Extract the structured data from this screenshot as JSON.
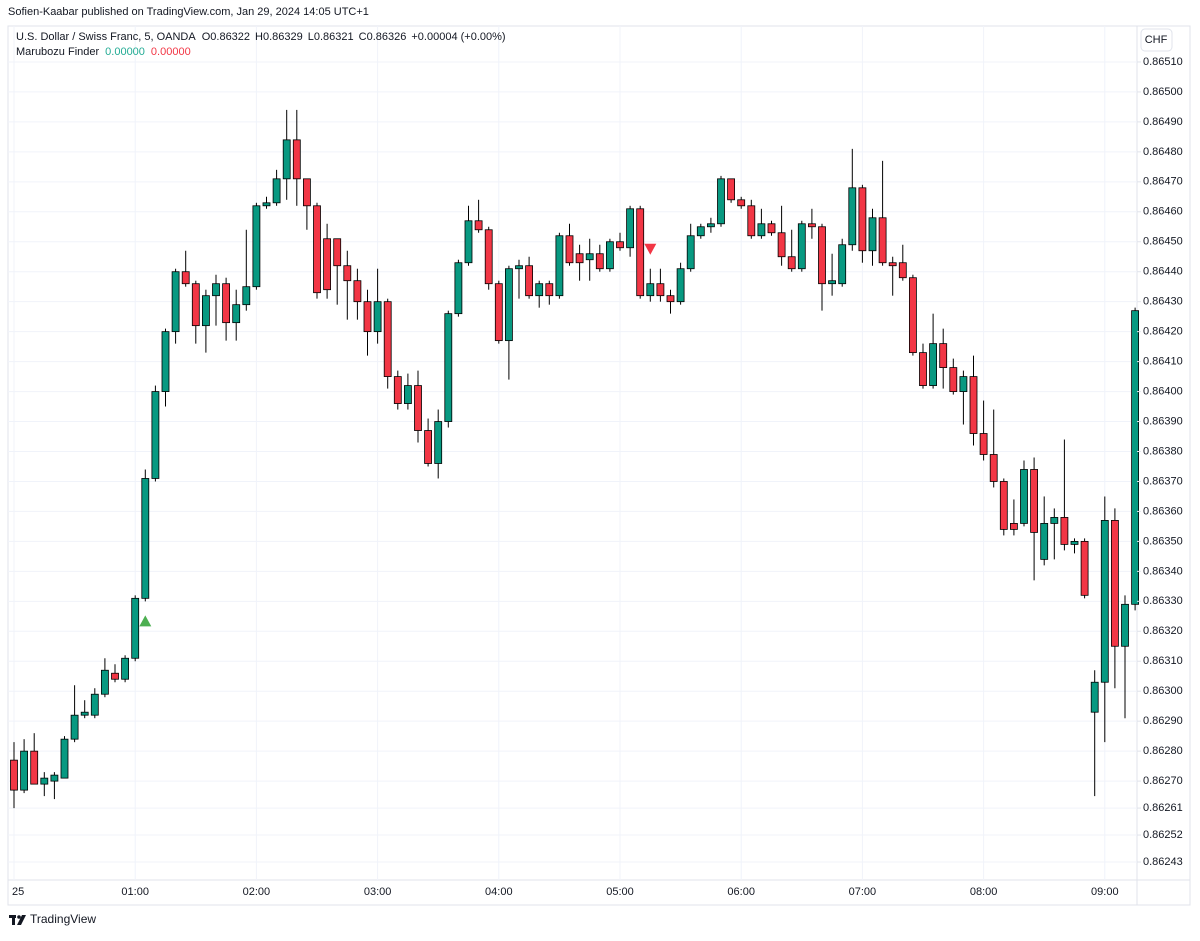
{
  "chart_data": {
    "type": "candlestick",
    "published": "Sofien-Kaabar published on TradingView.com, Jan 29, 2024 14:05 UTC+1",
    "title": "U.S. Dollar / Swiss Franc, 5, OANDA",
    "legend_open": "O0.86322",
    "legend_high": "H0.86329",
    "legend_low": "L0.86321",
    "legend_close": "C0.86326",
    "legend_change": "+0.00004 (+0.00%)",
    "indicator": "Marubozu Finder",
    "indicator_values": [
      {
        "text": "0.00000",
        "color": "#22ab94"
      },
      {
        "text": "0.00000",
        "color": "#f23645"
      }
    ],
    "currency": "CHF",
    "footer": "TradingView",
    "up_color": "#089981",
    "down_color": "#f23645",
    "grid": true,
    "ylim": [
      0.86237,
      0.86522
    ],
    "yticks": [
      {
        "value": 0.8651,
        "label": "0.86510"
      },
      {
        "value": 0.865,
        "label": "0.86500"
      },
      {
        "value": 0.8649,
        "label": "0.86490"
      },
      {
        "value": 0.8648,
        "label": "0.86480"
      },
      {
        "value": 0.8647,
        "label": "0.86470"
      },
      {
        "value": 0.8646,
        "label": "0.86460"
      },
      {
        "value": 0.8645,
        "label": "0.86450"
      },
      {
        "value": 0.8644,
        "label": "0.86440"
      },
      {
        "value": 0.8643,
        "label": "0.86430"
      },
      {
        "value": 0.8642,
        "label": "0.86420"
      },
      {
        "value": 0.8641,
        "label": "0.86410"
      },
      {
        "value": 0.864,
        "label": "0.86400"
      },
      {
        "value": 0.8639,
        "label": "0.86390"
      },
      {
        "value": 0.8638,
        "label": "0.86380"
      },
      {
        "value": 0.8637,
        "label": "0.86370"
      },
      {
        "value": 0.8636,
        "label": "0.86360"
      },
      {
        "value": 0.8635,
        "label": "0.86350"
      },
      {
        "value": 0.8634,
        "label": "0.86340"
      },
      {
        "value": 0.8633,
        "label": "0.86330"
      },
      {
        "value": 0.8632,
        "label": "0.86320"
      },
      {
        "value": 0.8631,
        "label": "0.86310"
      },
      {
        "value": 0.863,
        "label": "0.86300"
      },
      {
        "value": 0.8629,
        "label": "0.86290"
      },
      {
        "value": 0.8628,
        "label": "0.86280"
      },
      {
        "value": 0.8627,
        "label": "0.86270"
      },
      0.86261,
      0.86252,
      0.86243
    ],
    "categories": [
      "25",
      null,
      null,
      null,
      null,
      null,
      null,
      null,
      null,
      null,
      null,
      null,
      "01:00",
      null,
      null,
      null,
      null,
      null,
      null,
      null,
      null,
      null,
      null,
      null,
      "02:00",
      null,
      null,
      null,
      null,
      null,
      null,
      null,
      null,
      null,
      null,
      null,
      "03:00",
      null,
      null,
      null,
      null,
      null,
      null,
      null,
      null,
      null,
      null,
      null,
      "04:00",
      null,
      null,
      null,
      null,
      null,
      null,
      null,
      null,
      null,
      null,
      null,
      "05:00",
      null,
      null,
      null,
      null,
      null,
      null,
      null,
      null,
      null,
      null,
      null,
      "06:00",
      null,
      null,
      null,
      null,
      null,
      null,
      null,
      null,
      null,
      null,
      null,
      "07:00",
      null,
      null,
      null,
      null,
      null,
      null,
      null,
      null,
      null,
      null,
      null,
      "08:00",
      null,
      null,
      null,
      null,
      null,
      null,
      null,
      null,
      null,
      null,
      null,
      "09:00",
      null,
      null,
      null
    ],
    "open": [
      0.86277,
      0.86267,
      0.8628,
      0.86269,
      0.8627,
      0.86271,
      0.86284,
      0.86292,
      0.86292,
      0.86299,
      0.86306,
      0.86304,
      0.86311,
      0.86331,
      0.86371,
      0.864,
      0.8642,
      0.8644,
      0.86436,
      0.86422,
      0.86432,
      0.86436,
      0.86423,
      0.86429,
      0.86435,
      0.86462,
      0.86463,
      0.86471,
      0.86484,
      0.86471,
      0.86462,
      0.86451,
      0.86451,
      0.86442,
      0.86437,
      0.8643,
      0.8642,
      0.8643,
      0.86405,
      0.86396,
      0.86402,
      0.86387,
      0.86376,
      0.8639,
      0.86426,
      0.86443,
      0.86457,
      0.86454,
      0.86436,
      0.86417,
      0.86441,
      0.86442,
      0.86432,
      0.86436,
      0.86432,
      0.86452,
      0.86446,
      0.86444,
      0.86446,
      0.86441,
      0.8645,
      0.86448,
      0.86461,
      0.86432,
      0.86436,
      0.86432,
      0.8643,
      0.86441,
      0.86452,
      0.86455,
      0.86456,
      0.86471,
      0.86464,
      0.86462,
      0.86452,
      0.86456,
      0.86453,
      0.86445,
      0.86441,
      0.86456,
      0.86455,
      0.86436,
      0.86436,
      0.86449,
      0.86468,
      0.86447,
      0.86458,
      0.86443,
      0.86443,
      0.86438,
      0.86413,
      0.86402,
      0.86416,
      0.86408,
      0.864,
      0.86405,
      0.86386,
      0.86379,
      0.8637,
      0.86356,
      0.86356,
      0.86374,
      0.86344,
      0.86356,
      0.86358,
      0.86349,
      0.8635,
      0.86293,
      0.86303,
      0.86357,
      0.86315,
      0.86329
    ],
    "high": [
      0.86283,
      0.86284,
      0.86286,
      0.86273,
      0.86273,
      0.86285,
      0.86302,
      0.86297,
      0.86301,
      0.86311,
      0.86309,
      0.86312,
      0.86332,
      0.86374,
      0.86402,
      0.86421,
      0.86441,
      0.86447,
      0.86437,
      0.86434,
      0.86439,
      0.86438,
      0.86434,
      0.86454,
      0.86463,
      0.86465,
      0.86474,
      0.86494,
      0.86494,
      0.86471,
      0.86463,
      0.86456,
      0.86451,
      0.86447,
      0.86441,
      0.86434,
      0.86441,
      0.86431,
      0.86407,
      0.86406,
      0.86407,
      0.86391,
      0.86394,
      0.86427,
      0.86444,
      0.86462,
      0.86464,
      0.86455,
      0.86437,
      0.86442,
      0.86444,
      0.86445,
      0.86437,
      0.86437,
      0.86453,
      0.86456,
      0.86449,
      0.86451,
      0.86449,
      0.86451,
      0.86453,
      0.86462,
      0.86462,
      0.86441,
      0.86441,
      0.86434,
      0.86443,
      0.86456,
      0.86456,
      0.86458,
      0.86472,
      0.86471,
      0.86465,
      0.86464,
      0.86461,
      0.86457,
      0.86462,
      0.86454,
      0.86457,
      0.86461,
      0.86456,
      0.86446,
      0.86451,
      0.86481,
      0.86469,
      0.86461,
      0.86477,
      0.86445,
      0.86449,
      0.86439,
      0.86416,
      0.86426,
      0.86421,
      0.86411,
      0.86407,
      0.86412,
      0.86397,
      0.86394,
      0.86371,
      0.86364,
      0.86377,
      0.86378,
      0.86365,
      0.86361,
      0.86384,
      0.86351,
      0.86351,
      0.86307,
      0.86365,
      0.86361,
      0.86332,
      0.86428
    ],
    "low": [
      0.86261,
      0.86266,
      0.86269,
      0.86265,
      0.86264,
      0.86271,
      0.86283,
      0.86291,
      0.86291,
      0.86298,
      0.86303,
      0.86303,
      0.8631,
      0.8633,
      0.8637,
      0.86395,
      0.86416,
      0.86435,
      0.86416,
      0.86413,
      0.86422,
      0.86417,
      0.86417,
      0.86427,
      0.86434,
      0.86461,
      0.86462,
      0.86464,
      0.86462,
      0.86454,
      0.86431,
      0.86431,
      0.86429,
      0.86424,
      0.86424,
      0.86412,
      0.86416,
      0.86401,
      0.86394,
      0.86394,
      0.86383,
      0.86375,
      0.86371,
      0.86388,
      0.86425,
      0.86442,
      0.86453,
      0.86434,
      0.86416,
      0.86404,
      0.86431,
      0.86431,
      0.86428,
      0.86429,
      0.86431,
      0.86442,
      0.86437,
      0.86437,
      0.8644,
      0.8644,
      0.86447,
      0.86445,
      0.86431,
      0.8643,
      0.8643,
      0.86426,
      0.86429,
      0.8644,
      0.86451,
      0.86453,
      0.86455,
      0.86463,
      0.86461,
      0.86451,
      0.86451,
      0.86452,
      0.86442,
      0.8644,
      0.8644,
      0.86451,
      0.86427,
      0.86432,
      0.86435,
      0.86447,
      0.86443,
      0.86442,
      0.86442,
      0.86432,
      0.86437,
      0.86412,
      0.86401,
      0.86401,
      0.86401,
      0.86399,
      0.86389,
      0.86382,
      0.86377,
      0.86368,
      0.86352,
      0.86352,
      0.86355,
      0.86337,
      0.86342,
      0.86344,
      0.86347,
      0.86346,
      0.86331,
      0.86265,
      0.86283,
      0.86301,
      0.86291,
      0.86327
    ],
    "close": [
      0.86267,
      0.8628,
      0.86269,
      0.86271,
      0.86272,
      0.86284,
      0.86292,
      0.86293,
      0.86299,
      0.86307,
      0.86304,
      0.86311,
      0.86331,
      0.86371,
      0.864,
      0.8642,
      0.8644,
      0.86436,
      0.86422,
      0.86432,
      0.86436,
      0.86423,
      0.86429,
      0.86435,
      0.86462,
      0.86463,
      0.86471,
      0.86484,
      0.86471,
      0.86462,
      0.86433,
      0.86434,
      0.86442,
      0.86437,
      0.8643,
      0.8642,
      0.8643,
      0.86405,
      0.86396,
      0.86402,
      0.86387,
      0.86376,
      0.8639,
      0.86426,
      0.86443,
      0.86457,
      0.86454,
      0.86436,
      0.86417,
      0.86441,
      0.86442,
      0.86432,
      0.86436,
      0.86432,
      0.86452,
      0.86443,
      0.86443,
      0.86446,
      0.86441,
      0.8645,
      0.86448,
      0.86461,
      0.86432,
      0.86436,
      0.86432,
      0.8643,
      0.86441,
      0.86452,
      0.86455,
      0.86456,
      0.86471,
      0.86464,
      0.86462,
      0.86452,
      0.86456,
      0.86453,
      0.86445,
      0.86441,
      0.86456,
      0.86455,
      0.86436,
      0.86437,
      0.86449,
      0.86468,
      0.86447,
      0.86458,
      0.86443,
      0.86442,
      0.86438,
      0.86413,
      0.86402,
      0.86416,
      0.86408,
      0.864,
      0.86405,
      0.86386,
      0.86379,
      0.8637,
      0.86354,
      0.86354,
      0.86374,
      0.86353,
      0.86356,
      0.86358,
      0.86349,
      0.8635,
      0.86332,
      0.86303,
      0.86357,
      0.86315,
      0.86329,
      0.86427
    ],
    "signals": [
      {
        "at": 13,
        "direction": "up",
        "color": "#4caf50"
      },
      {
        "at": 63,
        "direction": "down",
        "color": "#f23645"
      }
    ]
  }
}
